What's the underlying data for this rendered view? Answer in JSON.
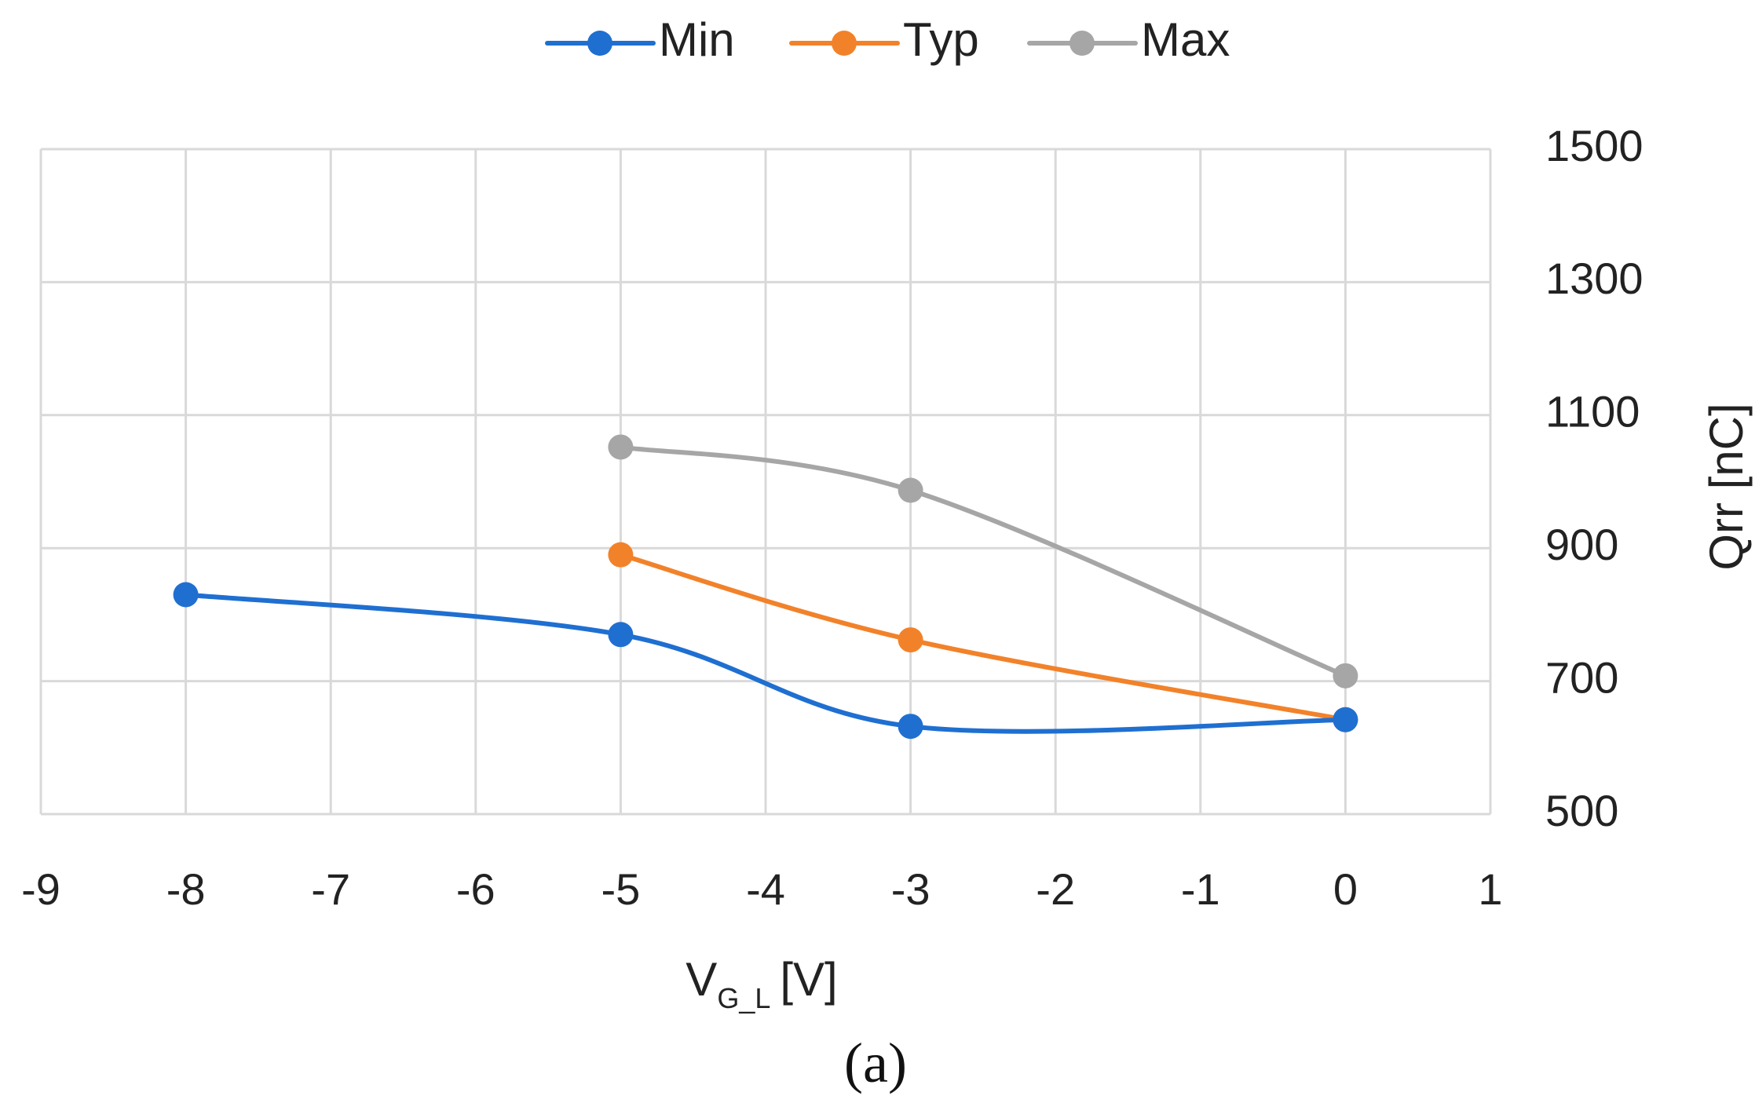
{
  "chart_data": {
    "type": "line",
    "title": "",
    "xlabel": {
      "main": "V",
      "subscript": "G_L",
      "unit": "[V]"
    },
    "ylabel": "Qrr [nC]",
    "xlim": [
      -9,
      1
    ],
    "ylim": [
      500,
      1500
    ],
    "x_ticks": [
      -9,
      -8,
      -7,
      -6,
      -5,
      -4,
      -3,
      -2,
      -1,
      0,
      1
    ],
    "y_ticks": [
      500,
      700,
      900,
      1100,
      1300,
      1500
    ],
    "grid": true,
    "y_axis_side": "right",
    "legend_position": "top",
    "smoothed": true,
    "series": [
      {
        "name": "Min",
        "color": "#1F6FD1",
        "points": [
          {
            "x": -8,
            "y": 830
          },
          {
            "x": -5,
            "y": 770
          },
          {
            "x": -3,
            "y": 632
          },
          {
            "x": 0,
            "y": 642
          }
        ]
      },
      {
        "name": "Typ",
        "color": "#F2822A",
        "points": [
          {
            "x": -5,
            "y": 890
          },
          {
            "x": -3,
            "y": 762
          },
          {
            "x": 0,
            "y": 642
          }
        ]
      },
      {
        "name": "Max",
        "color": "#A6A6A6",
        "points": [
          {
            "x": -5,
            "y": 1052
          },
          {
            "x": -3,
            "y": 987
          },
          {
            "x": 0,
            "y": 708
          }
        ]
      }
    ]
  },
  "caption": "(a)",
  "colors": {
    "grid": "#D9D9D9",
    "text": "#222222"
  }
}
